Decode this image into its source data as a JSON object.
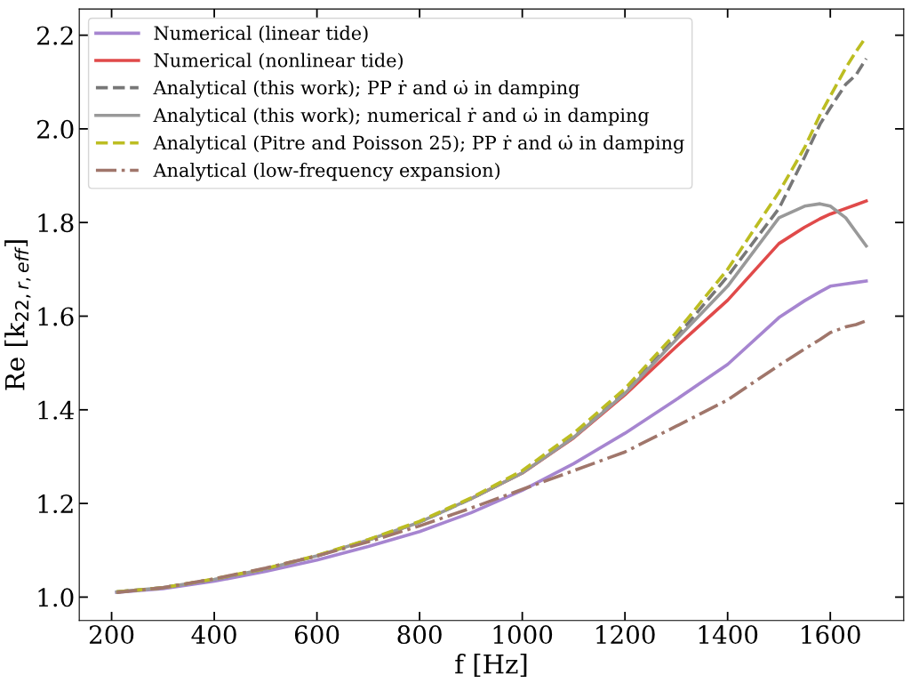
{
  "chart_data": {
    "type": "line",
    "xlabel": "f [Hz]",
    "ylabel": "Re [k$_{22,r,eff}$]",
    "x": [
      210,
      300,
      400,
      500,
      600,
      700,
      800,
      900,
      1000,
      1100,
      1200,
      1300,
      1400,
      1500,
      1550,
      1580,
      1600,
      1630,
      1650,
      1670
    ],
    "series": [
      {
        "name": "Numerical (linear tide)",
        "color": "#a685d0",
        "line_style": "solid",
        "values": [
          1.01,
          1.018,
          1.034,
          1.055,
          1.079,
          1.108,
          1.14,
          1.18,
          1.228,
          1.285,
          1.35,
          1.422,
          1.497,
          1.597,
          1.633,
          1.652,
          1.664,
          1.669,
          1.672,
          1.675
        ]
      },
      {
        "name": "Numerical (nonlinear tide)",
        "color": "#e04a4a",
        "line_style": "solid",
        "values": [
          null,
          null,
          null,
          null,
          null,
          null,
          null,
          1.21,
          1.265,
          1.34,
          1.432,
          1.535,
          1.634,
          1.755,
          1.79,
          1.808,
          1.818,
          1.83,
          1.838,
          1.846
        ]
      },
      {
        "name": "Analytical (this work); PP ṙ and ω̇ in damping",
        "color": "#777777",
        "line_style": "dashed",
        "values": [
          1.011,
          1.02,
          1.038,
          1.06,
          1.088,
          1.122,
          1.16,
          1.21,
          1.266,
          1.342,
          1.437,
          1.555,
          1.685,
          1.83,
          1.94,
          2.01,
          2.045,
          2.095,
          2.115,
          2.15
        ]
      },
      {
        "name": "Analytical (this work); numerical ṙ and ω̇ in damping",
        "color": "#999999",
        "line_style": "solid",
        "values": [
          1.011,
          1.02,
          1.038,
          1.06,
          1.088,
          1.122,
          1.16,
          1.21,
          1.265,
          1.341,
          1.435,
          1.55,
          1.664,
          1.81,
          1.835,
          1.84,
          1.835,
          1.81,
          1.78,
          1.75
        ]
      },
      {
        "name": "Analytical (Pitre and Poisson 25); PP ṙ and ω̇ in damping",
        "color": "#bcbd22",
        "line_style": "dashed",
        "values": [
          1.011,
          1.02,
          1.039,
          1.061,
          1.089,
          1.123,
          1.162,
          1.212,
          1.27,
          1.35,
          1.445,
          1.565,
          1.7,
          1.865,
          1.96,
          2.03,
          2.07,
          2.13,
          2.165,
          2.197
        ]
      },
      {
        "name": "Analytical (low-frequency expansion)",
        "color": "#a0766b",
        "line_style": "dashdot",
        "values": [
          1.01,
          1.02,
          1.039,
          1.062,
          1.088,
          1.118,
          1.152,
          1.19,
          1.23,
          1.27,
          1.31,
          1.365,
          1.421,
          1.495,
          1.53,
          1.55,
          1.565,
          1.577,
          1.582,
          1.59
        ]
      }
    ],
    "xlim": [
      137,
      1743
    ],
    "ylim": [
      0.95,
      2.256
    ],
    "xticks": [
      200,
      400,
      600,
      800,
      1000,
      1200,
      1400,
      1600
    ],
    "yticks": [
      {
        "value": 1.0,
        "label": "1.0"
      },
      1.2,
      1.4,
      1.6,
      1.8,
      {
        "value": 2.0,
        "label": "2.0"
      },
      2.2
    ],
    "legend": "top left",
    "grid": false,
    "marker": "none"
  }
}
